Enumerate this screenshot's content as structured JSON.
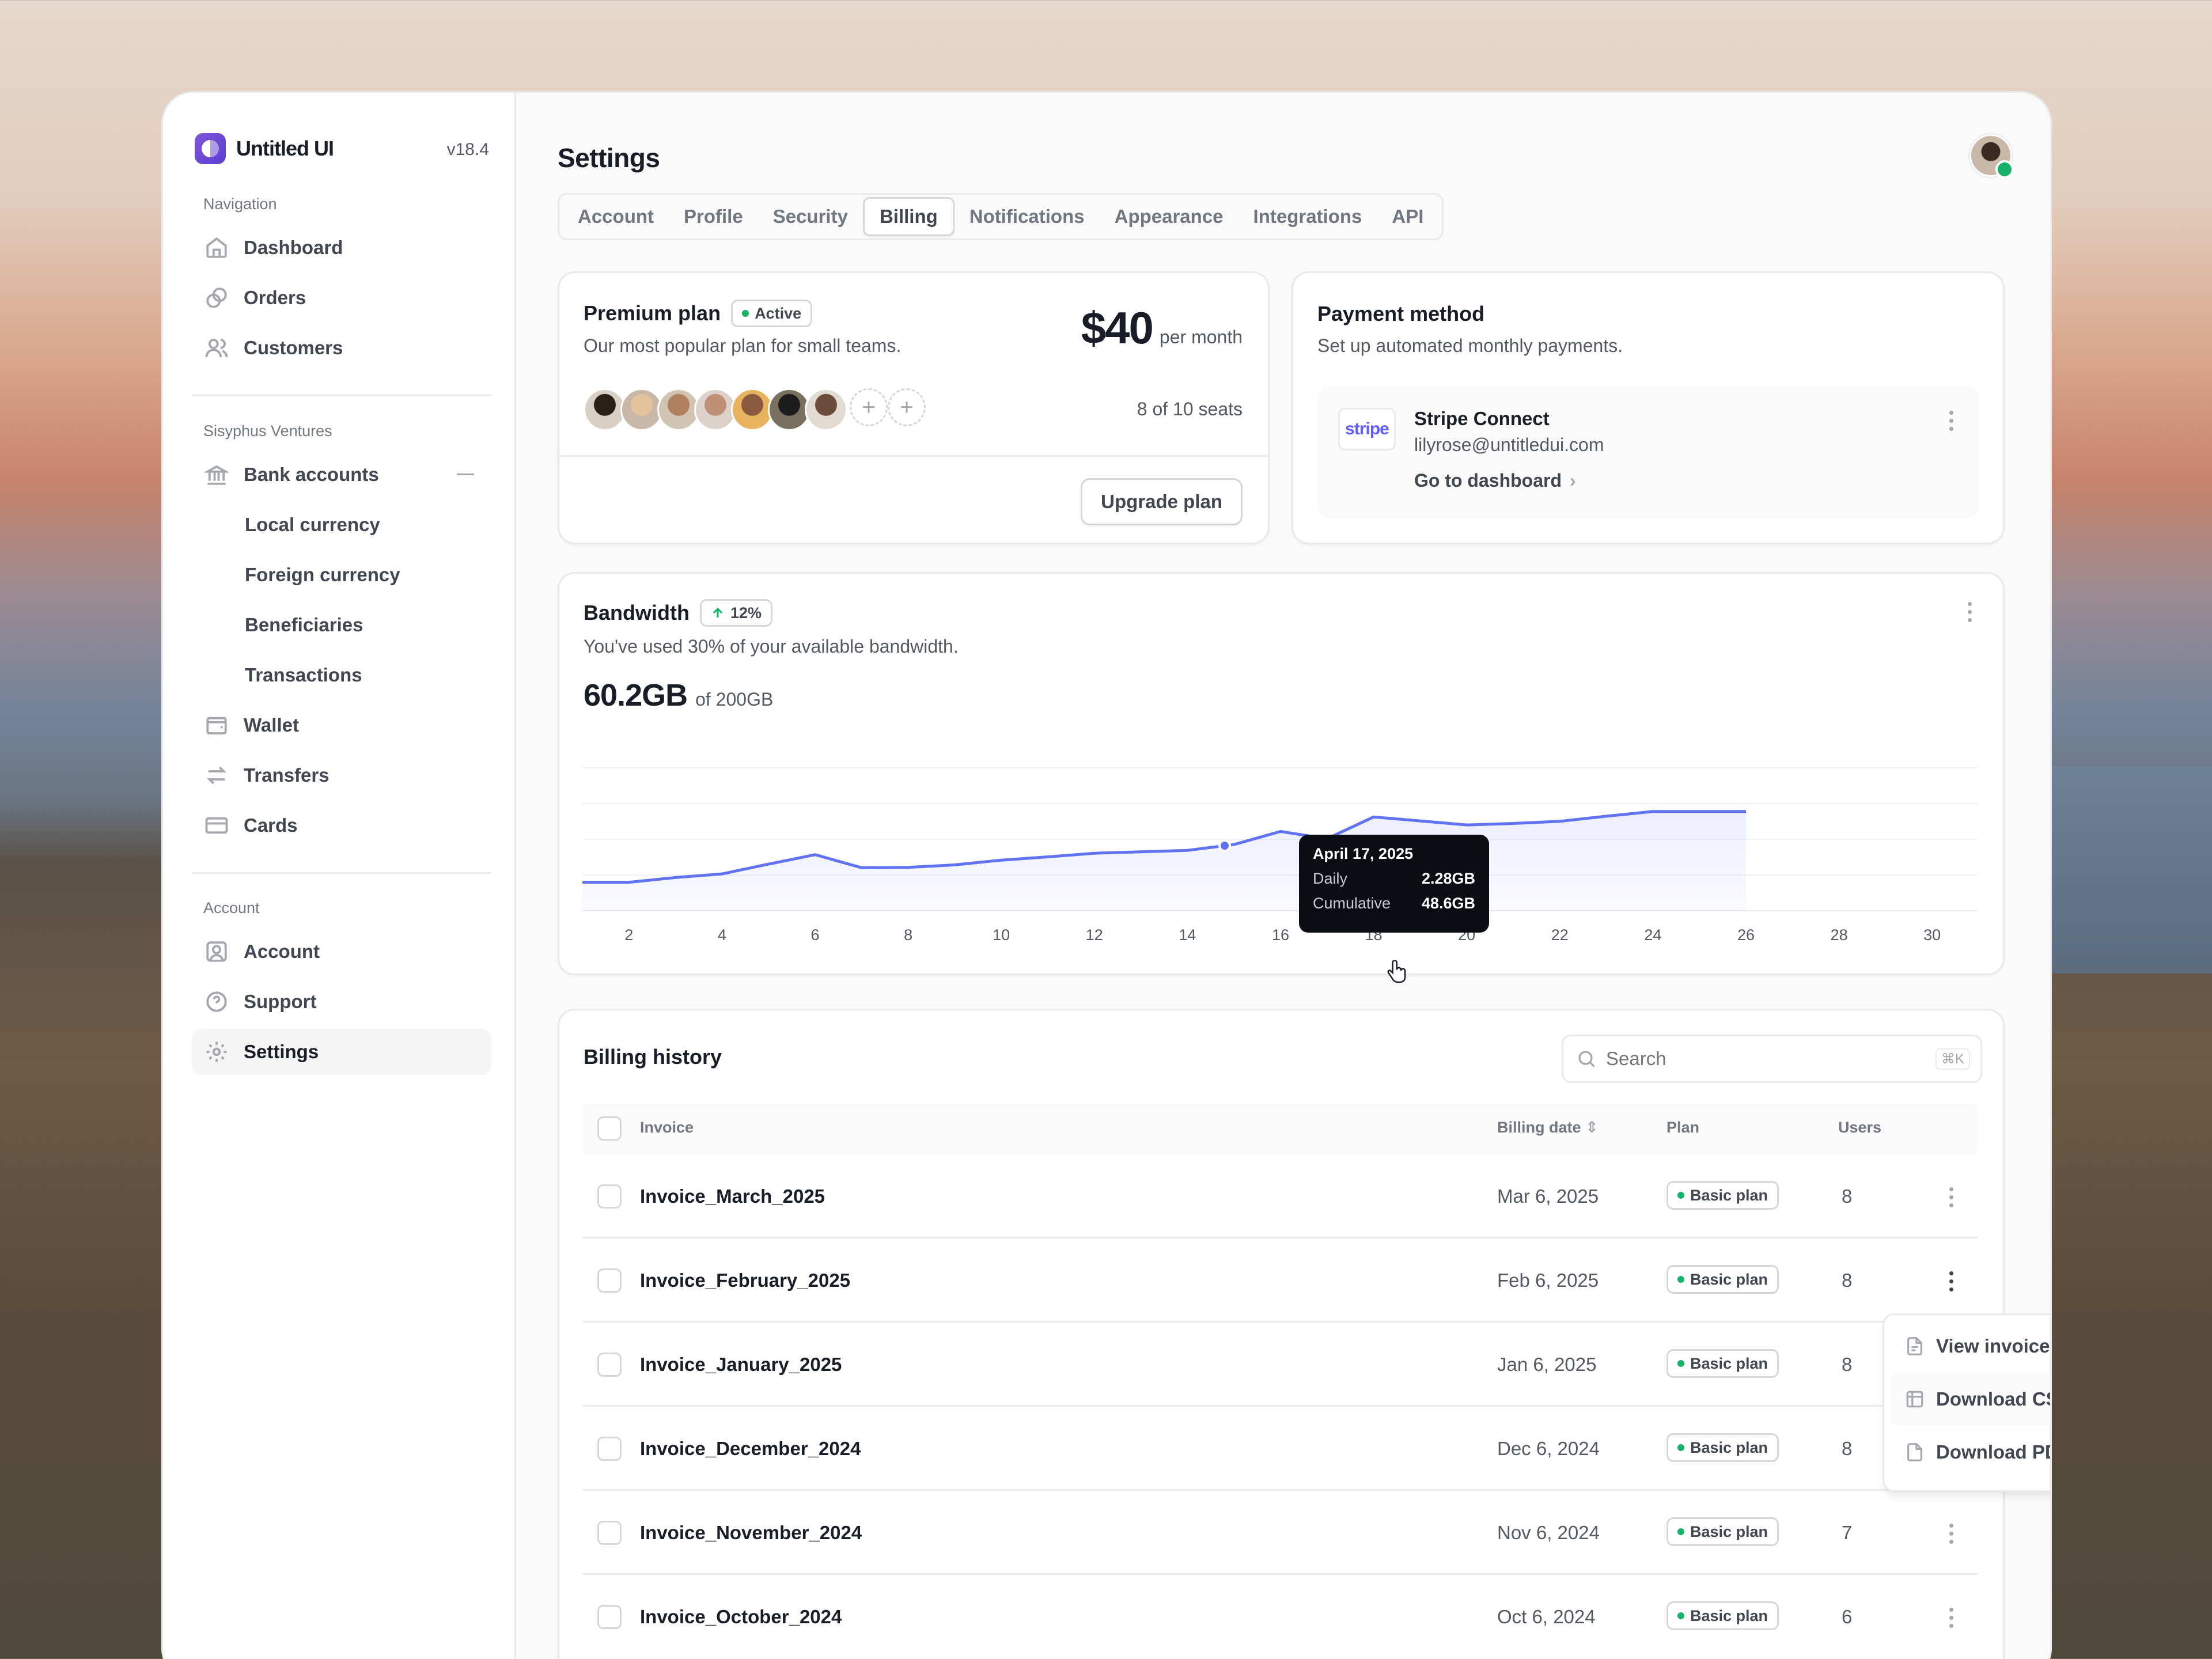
{
  "brand": {
    "name": "Untitled UI",
    "version": "v18.4"
  },
  "sidebar": {
    "nav_label": "Navigation",
    "nav": [
      {
        "label": "Dashboard",
        "icon": "home-icon"
      },
      {
        "label": "Orders",
        "icon": "orders-icon"
      },
      {
        "label": "Customers",
        "icon": "users-icon"
      }
    ],
    "org_label": "Sisyphus Ventures",
    "org": [
      {
        "label": "Bank accounts",
        "icon": "bank-icon"
      },
      {
        "label": "Local currency"
      },
      {
        "label": "Foreign currency"
      },
      {
        "label": "Beneficiaries"
      },
      {
        "label": "Transactions"
      },
      {
        "label": "Wallet",
        "icon": "wallet-icon"
      },
      {
        "label": "Transfers",
        "icon": "transfer-icon"
      },
      {
        "label": "Cards",
        "icon": "card-icon"
      }
    ],
    "account_label": "Account",
    "account": [
      {
        "label": "Account",
        "icon": "user-square-icon"
      },
      {
        "label": "Support",
        "icon": "help-icon"
      },
      {
        "label": "Settings",
        "icon": "gear-icon"
      }
    ]
  },
  "header": {
    "title": "Settings",
    "tabs": [
      "Account",
      "Profile",
      "Security",
      "Billing",
      "Notifications",
      "Appearance",
      "Integrations",
      "API"
    ],
    "active_tab": "Billing"
  },
  "plan": {
    "title": "Premium plan",
    "status": "Active",
    "description": "Our most popular plan for small teams.",
    "price": "$40",
    "period": "per month",
    "seats": "8 of 10 seats",
    "upgrade_label": "Upgrade plan",
    "add_symbol": "+"
  },
  "payment": {
    "title": "Payment method",
    "description": "Set up automated monthly payments.",
    "provider_logo": "stripe",
    "provider": "Stripe Connect",
    "email": "lilyrose@untitledui.com",
    "link": "Go to dashboard",
    "link_arrow": "›"
  },
  "bandwidth": {
    "title": "Bandwidth",
    "change": "12%",
    "description": "You've used 30% of your available bandwidth.",
    "used": "60.2GB",
    "total": "of 200GB",
    "tooltip": {
      "date": "April 17, 2025",
      "daily_label": "Daily",
      "daily": "2.28GB",
      "cumulative_label": "Cumulative",
      "cumulative": "48.6GB"
    }
  },
  "chart_data": {
    "type": "area",
    "x": [
      1,
      2,
      3,
      4,
      5,
      6,
      7,
      8,
      9,
      10,
      11,
      12,
      13,
      14,
      15,
      16,
      17,
      18,
      19,
      20,
      21,
      22,
      23,
      24,
      25,
      26
    ],
    "xticks": [
      "2",
      "4",
      "6",
      "8",
      "10",
      "12",
      "14",
      "16",
      "18",
      "20",
      "22",
      "24",
      "26",
      "28",
      "30"
    ],
    "xlim": [
      1,
      31
    ],
    "series": [
      {
        "values": [
          0.8,
          0.8,
          0.93,
          1.03,
          1.3,
          1.56,
          1.2,
          1.21,
          1.28,
          1.41,
          1.5,
          1.6,
          1.64,
          1.68,
          1.84,
          2.2,
          2.0,
          2.6,
          2.49,
          2.38,
          2.42,
          2.48,
          2.62,
          2.75,
          2.75,
          2.75
        ]
      }
    ],
    "ylim": [
      0,
      4
    ],
    "highlight_x": 14.8,
    "grid": true
  },
  "billing": {
    "title": "Billing history",
    "search_placeholder": "Search",
    "shortcut": "⌘K",
    "columns": {
      "invoice": "Invoice",
      "date": "Billing date",
      "plan": "Plan",
      "users": "Users"
    },
    "rows": [
      {
        "invoice": "Invoice_March_2025",
        "date": "Mar 6, 2025",
        "plan": "Basic plan",
        "users": "8"
      },
      {
        "invoice": "Invoice_February_2025",
        "date": "Feb 6, 2025",
        "plan": "Basic plan",
        "users": "8"
      },
      {
        "invoice": "Invoice_January_2025",
        "date": "Jan 6, 2025",
        "plan": "Basic plan",
        "users": "8"
      },
      {
        "invoice": "Invoice_December_2024",
        "date": "Dec 6, 2024",
        "plan": "Basic plan",
        "users": "8"
      },
      {
        "invoice": "Invoice_November_2024",
        "date": "Nov 6, 2024",
        "plan": "Basic plan",
        "users": "7"
      },
      {
        "invoice": "Invoice_October_2024",
        "date": "Oct 6, 2024",
        "plan": "Basic plan",
        "users": "6"
      }
    ],
    "menu": [
      "View invoice",
      "Download CSV",
      "Download PDF"
    ]
  },
  "colors": {
    "accent": "#6172f3",
    "success": "#17b26a",
    "text": "#181d27",
    "muted": "#535862"
  }
}
